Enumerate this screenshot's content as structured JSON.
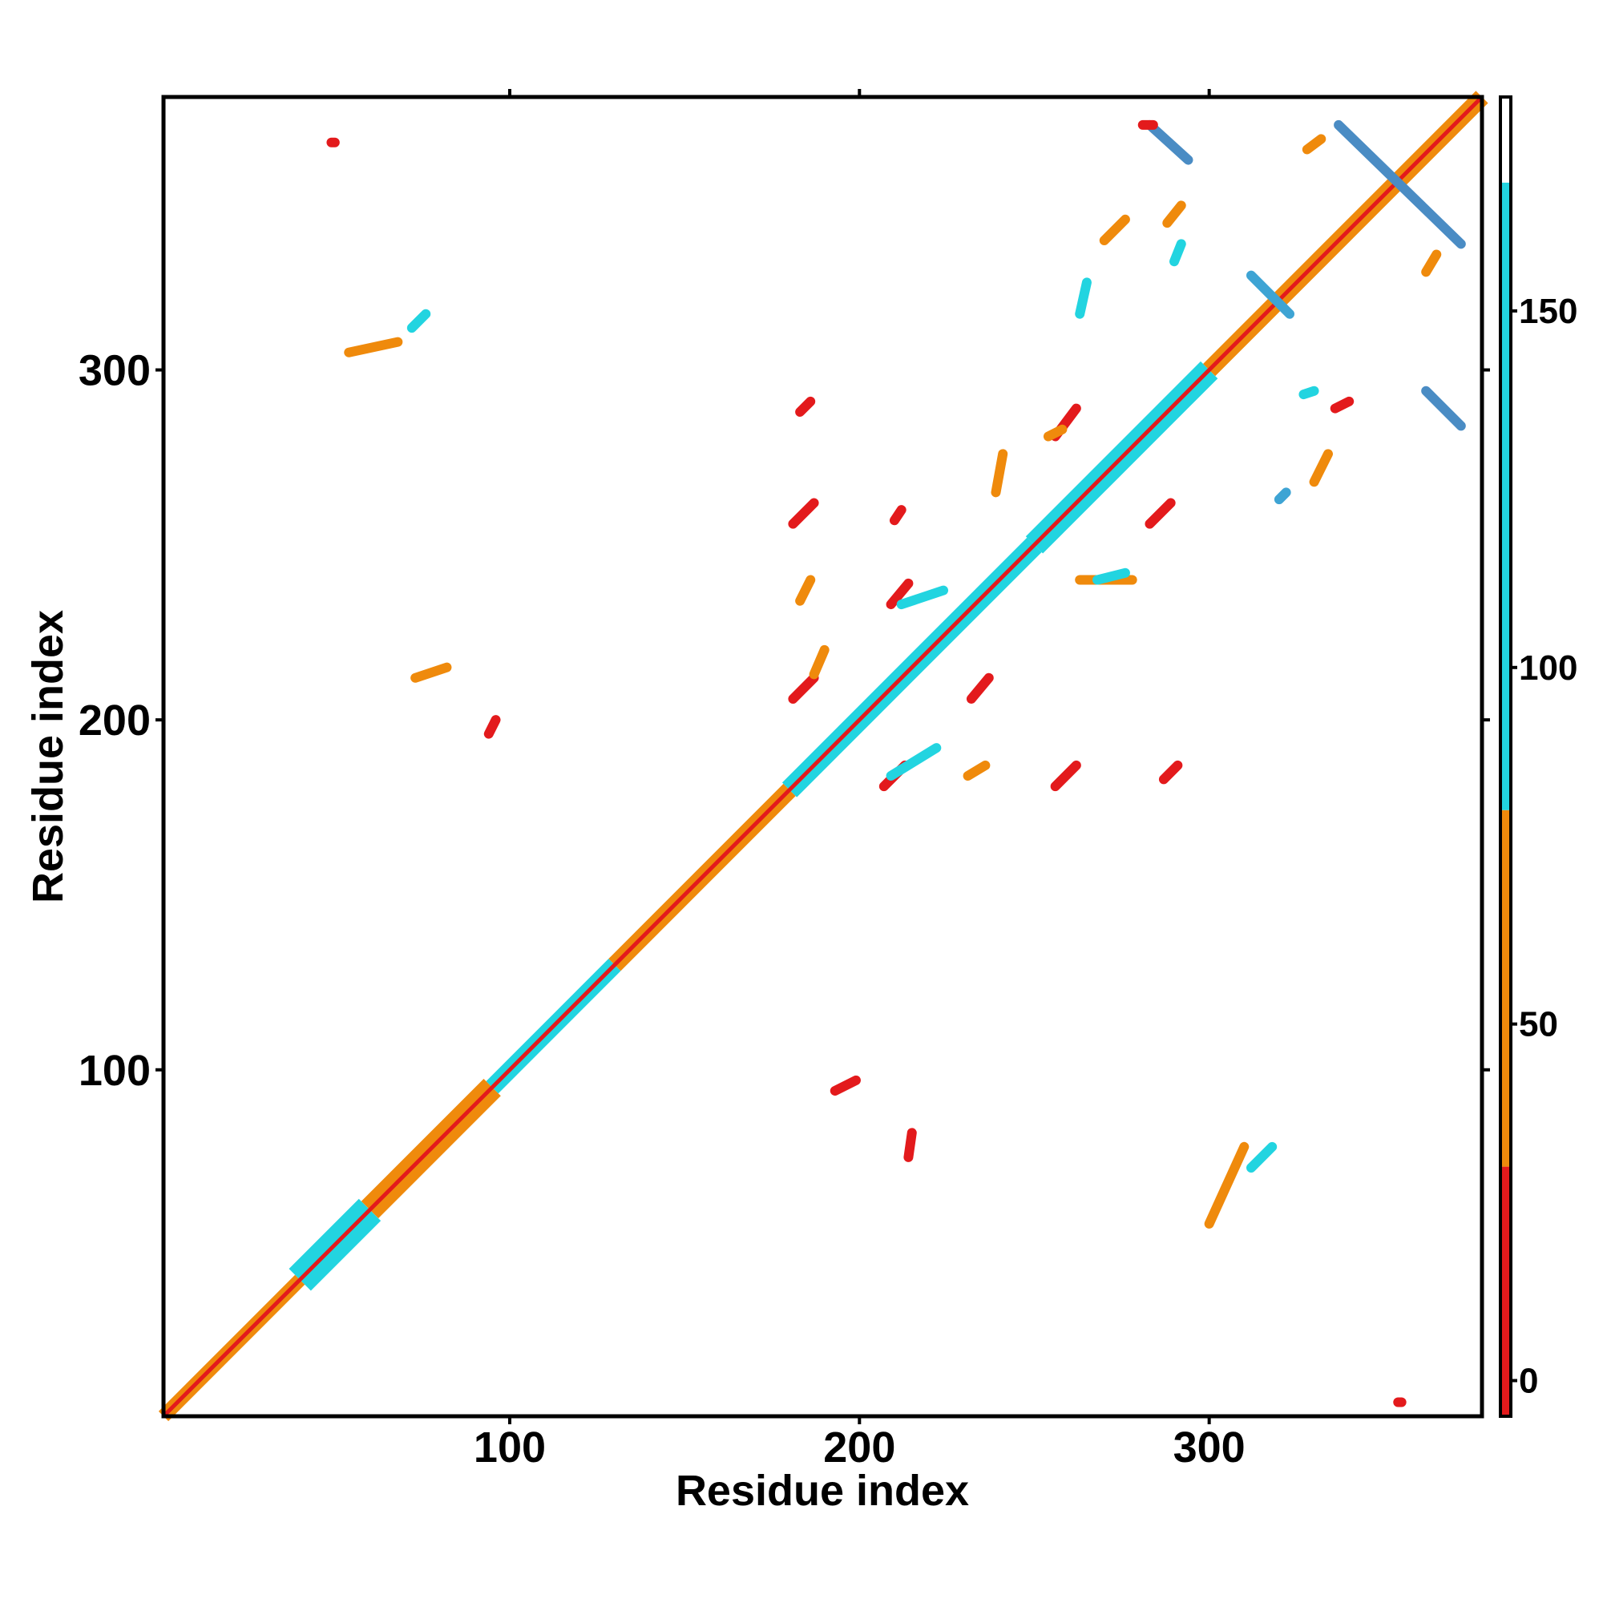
{
  "chart_data": {
    "type": "heatmap",
    "title": "",
    "xlabel": "Residue index",
    "ylabel": "Residue index",
    "xlim": [
      1,
      378
    ],
    "ylim": [
      1,
      378
    ],
    "x_ticks": [
      100,
      200,
      300
    ],
    "y_ticks": [
      100,
      200,
      300
    ],
    "x_tick_labels": [
      "100",
      "200",
      "300"
    ],
    "y_tick_labels": [
      "100",
      "200",
      "300"
    ],
    "grid": false,
    "legend": "right",
    "colorbar": {
      "range": [
        -5,
        180
      ],
      "ticks": [
        0,
        50,
        100,
        150
      ],
      "tick_labels": [
        "0",
        "50",
        "100",
        "150"
      ],
      "bands": [
        {
          "from": -5,
          "to": 30,
          "color": "#e31a1c"
        },
        {
          "from": 30,
          "to": 80,
          "color": "#ef8a0c"
        },
        {
          "from": 80,
          "to": 168,
          "color": "#22d4e0"
        },
        {
          "from": 168,
          "to": 180,
          "color": "#ffffff"
        }
      ]
    },
    "diagonal": {
      "from": 1,
      "to": 378,
      "segments": [
        {
          "from": 1,
          "to": 40,
          "color": "#ef8a0c",
          "width": 4
        },
        {
          "from": 40,
          "to": 60,
          "color": "#22d4e0",
          "width": 9
        },
        {
          "from": 60,
          "to": 95,
          "color": "#ef8a0c",
          "width": 7
        },
        {
          "from": 95,
          "to": 130,
          "color": "#22d4e0",
          "width": 5
        },
        {
          "from": 130,
          "to": 180,
          "color": "#ef8a0c",
          "width": 5
        },
        {
          "from": 180,
          "to": 250,
          "color": "#22d4e0",
          "width": 6
        },
        {
          "from": 250,
          "to": 300,
          "color": "#22d4e0",
          "width": 7
        },
        {
          "from": 300,
          "to": 378,
          "color": "#ef8a0c",
          "width": 5
        }
      ]
    },
    "contact_segments": [
      {
        "x1": 283,
        "y1": 370,
        "x2": 294,
        "y2": 360,
        "value": 150,
        "color": "#4a8cc4"
      },
      {
        "x1": 337,
        "y1": 370,
        "x2": 372,
        "y2": 336,
        "value": 150,
        "color": "#4a8cc4"
      },
      {
        "x1": 362,
        "y1": 294,
        "x2": 372,
        "y2": 284,
        "value": 150,
        "color": "#4a8cc4"
      },
      {
        "x1": 312,
        "y1": 327,
        "x2": 323,
        "y2": 316,
        "value": 140,
        "color": "#3ea4d4"
      },
      {
        "x1": 281,
        "y1": 370,
        "x2": 284,
        "y2": 370,
        "value": 10,
        "color": "#e31a1c"
      },
      {
        "x1": 256,
        "y1": 281,
        "x2": 262,
        "y2": 289,
        "value": 10,
        "color": "#e31a1c"
      },
      {
        "x1": 181,
        "y1": 256,
        "x2": 187,
        "y2": 262,
        "value": 10,
        "color": "#e31a1c"
      },
      {
        "x1": 209,
        "y1": 233,
        "x2": 214,
        "y2": 239,
        "value": 10,
        "color": "#e31a1c"
      },
      {
        "x1": 181,
        "y1": 206,
        "x2": 187,
        "y2": 212,
        "value": 10,
        "color": "#e31a1c"
      },
      {
        "x1": 232,
        "y1": 206,
        "x2": 237,
        "y2": 212,
        "value": 10,
        "color": "#e31a1c"
      },
      {
        "x1": 207,
        "y1": 181,
        "x2": 213,
        "y2": 187,
        "value": 10,
        "color": "#e31a1c"
      },
      {
        "x1": 256,
        "y1": 181,
        "x2": 262,
        "y2": 187,
        "value": 10,
        "color": "#e31a1c"
      },
      {
        "x1": 283,
        "y1": 256,
        "x2": 289,
        "y2": 262,
        "value": 10,
        "color": "#e31a1c"
      },
      {
        "x1": 54,
        "y1": 305,
        "x2": 68,
        "y2": 308,
        "value": 60,
        "color": "#ef8a0c"
      },
      {
        "x1": 72,
        "y1": 312,
        "x2": 76,
        "y2": 316,
        "value": 100,
        "color": "#22d4e0"
      },
      {
        "x1": 73,
        "y1": 212,
        "x2": 82,
        "y2": 215,
        "value": 60,
        "color": "#ef8a0c"
      },
      {
        "x1": 300,
        "y1": 56,
        "x2": 310,
        "y2": 78,
        "value": 60,
        "color": "#ef8a0c"
      },
      {
        "x1": 312,
        "y1": 72,
        "x2": 318,
        "y2": 78,
        "value": 100,
        "color": "#22d4e0"
      },
      {
        "x1": 270,
        "y1": 337,
        "x2": 276,
        "y2": 343,
        "value": 60,
        "color": "#ef8a0c"
      },
      {
        "x1": 288,
        "y1": 342,
        "x2": 292,
        "y2": 347,
        "value": 60,
        "color": "#ef8a0c"
      },
      {
        "x1": 254,
        "y1": 281,
        "x2": 258,
        "y2": 283,
        "value": 60,
        "color": "#ef8a0c"
      },
      {
        "x1": 330,
        "y1": 268,
        "x2": 334,
        "y2": 276,
        "value": 60,
        "color": "#ef8a0c"
      },
      {
        "x1": 336,
        "y1": 289,
        "x2": 340,
        "y2": 291,
        "value": 30,
        "color": "#e31a1c"
      },
      {
        "x1": 362,
        "y1": 328,
        "x2": 365,
        "y2": 333,
        "value": 60,
        "color": "#ef8a0c"
      },
      {
        "x1": 328,
        "y1": 363,
        "x2": 332,
        "y2": 366,
        "value": 60,
        "color": "#ef8a0c"
      },
      {
        "x1": 183,
        "y1": 288,
        "x2": 186,
        "y2": 291,
        "value": 30,
        "color": "#e31a1c"
      },
      {
        "x1": 210,
        "y1": 257,
        "x2": 212,
        "y2": 260,
        "value": 30,
        "color": "#e31a1c"
      },
      {
        "x1": 183,
        "y1": 234,
        "x2": 186,
        "y2": 240,
        "value": 60,
        "color": "#ef8a0c"
      },
      {
        "x1": 187,
        "y1": 213,
        "x2": 190,
        "y2": 220,
        "value": 60,
        "color": "#ef8a0c"
      },
      {
        "x1": 94,
        "y1": 196,
        "x2": 96,
        "y2": 200,
        "value": 10,
        "color": "#e31a1c"
      },
      {
        "x1": 193,
        "y1": 94,
        "x2": 199,
        "y2": 97,
        "value": 30,
        "color": "#e31a1c"
      },
      {
        "x1": 214,
        "y1": 75,
        "x2": 215,
        "y2": 82,
        "value": 30,
        "color": "#e31a1c"
      },
      {
        "x1": 287,
        "y1": 183,
        "x2": 291,
        "y2": 187,
        "value": 30,
        "color": "#e31a1c"
      },
      {
        "x1": 231,
        "y1": 184,
        "x2": 236,
        "y2": 187,
        "value": 60,
        "color": "#ef8a0c"
      },
      {
        "x1": 263,
        "y1": 240,
        "x2": 278,
        "y2": 240,
        "value": 60,
        "color": "#ef8a0c"
      },
      {
        "x1": 268,
        "y1": 240,
        "x2": 276,
        "y2": 242,
        "value": 100,
        "color": "#22d4e0"
      },
      {
        "x1": 239,
        "y1": 265,
        "x2": 241,
        "y2": 276,
        "value": 60,
        "color": "#ef8a0c"
      },
      {
        "x1": 209,
        "y1": 184,
        "x2": 222,
        "y2": 192,
        "value": 100,
        "color": "#22d4e0"
      },
      {
        "x1": 212,
        "y1": 233,
        "x2": 224,
        "y2": 237,
        "value": 100,
        "color": "#22d4e0"
      },
      {
        "x1": 290,
        "y1": 331,
        "x2": 292,
        "y2": 336,
        "value": 110,
        "color": "#22d4e0"
      },
      {
        "x1": 263,
        "y1": 316,
        "x2": 265,
        "y2": 325,
        "value": 110,
        "color": "#22d4e0"
      },
      {
        "x1": 320,
        "y1": 263,
        "x2": 322,
        "y2": 265,
        "value": 130,
        "color": "#3ea4d4"
      },
      {
        "x1": 327,
        "y1": 293,
        "x2": 330,
        "y2": 294,
        "value": 120,
        "color": "#22d4e0"
      },
      {
        "x1": 354,
        "y1": 5,
        "x2": 355,
        "y2": 5,
        "value": 10,
        "color": "#e31a1c"
      },
      {
        "x1": 49,
        "y1": 365,
        "x2": 50,
        "y2": 365,
        "value": 10,
        "color": "#e31a1c"
      }
    ]
  }
}
